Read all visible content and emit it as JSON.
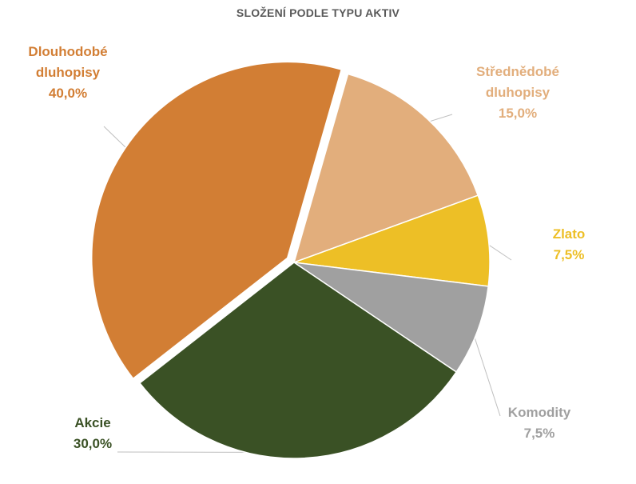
{
  "chart_data": {
    "type": "pie",
    "title": "SLOŽENÍ PODLE TYPU AKTIV",
    "slices": [
      {
        "label_lines": [
          "Dlouhodobé",
          "dluhopisy"
        ],
        "value": 40.0,
        "value_label": "40,0%",
        "color": "#D27E34",
        "label_color": "#D27E34",
        "exploded": true
      },
      {
        "label_lines": [
          "Střednědobé",
          "dluhopisy"
        ],
        "value": 15.0,
        "value_label": "15,0%",
        "color": "#E2AE7C",
        "label_color": "#E2AE7C",
        "exploded": false
      },
      {
        "label_lines": [
          "Zlato"
        ],
        "value": 7.5,
        "value_label": "7,5%",
        "color": "#EDBF26",
        "label_color": "#EDBF26",
        "exploded": false
      },
      {
        "label_lines": [
          "Komodity"
        ],
        "value": 7.5,
        "value_label": "7,5%",
        "color": "#A0A0A0",
        "label_color": "#A0A0A0",
        "exploded": false
      },
      {
        "label_lines": [
          "Akcie"
        ],
        "value": 30.0,
        "value_label": "30,0%",
        "color": "#3A5125",
        "label_color": "#3A5125",
        "exploded": false
      }
    ],
    "legend": "none",
    "data_labels": "outside with leader lines"
  }
}
